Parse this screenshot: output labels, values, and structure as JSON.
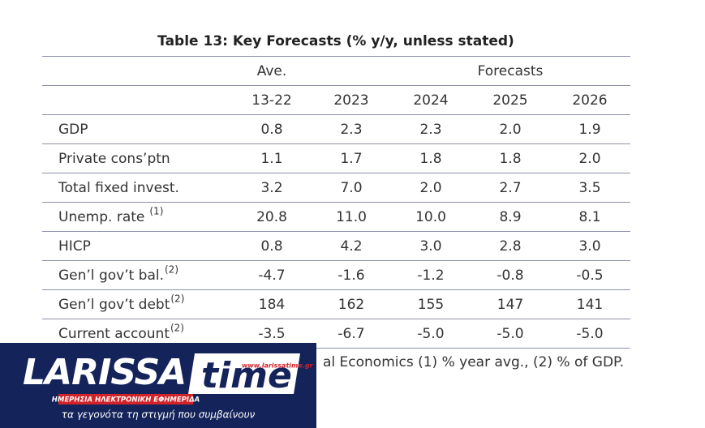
{
  "table": {
    "title": "Table 13: Key Forecasts (% y/y, unless stated)",
    "header_groups": [
      "Ave.",
      "Forecasts"
    ],
    "columns": [
      "13-22",
      "2023",
      "2024",
      "2025",
      "2026"
    ],
    "rows": [
      {
        "label": "GDP",
        "values": [
          "0.8",
          "2.3",
          "2.3",
          "2.0",
          "1.9"
        ]
      },
      {
        "label": "Private cons’ptn",
        "values": [
          "1.1",
          "1.7",
          "1.8",
          "1.8",
          "2.0"
        ]
      },
      {
        "label": "Total fixed invest.",
        "values": [
          "3.2",
          "7.0",
          "2.0",
          "2.7",
          "3.5"
        ]
      },
      {
        "label": "Unemp. rate",
        "note": "(1)",
        "values": [
          "20.8",
          "11.0",
          "10.0",
          "8.9",
          "8.1"
        ]
      },
      {
        "label": "HICP",
        "values": [
          "0.8",
          "4.2",
          "3.0",
          "2.8",
          "3.0"
        ]
      },
      {
        "label": "Gen’l gov’t bal.",
        "note": "(2)",
        "values": [
          "-4.7",
          "-1.6",
          "-1.2",
          "-0.8",
          "-0.5"
        ]
      },
      {
        "label": "Gen’l gov’t debt",
        "note": "(2)",
        "values": [
          "184",
          "162",
          "155",
          "147",
          "141"
        ]
      },
      {
        "label": "Current account",
        "note": "(2)",
        "values": [
          "-3.5",
          "-6.7",
          "-5.0",
          "-5.0",
          "-5.0"
        ]
      }
    ],
    "footer": "al Economics (1) % year avg., (2) % of GDP."
  },
  "logo": {
    "name": "LARISSA",
    "name2": "time",
    "url": "www.larissatime.gr",
    "tagline": "ΗΜΕΡΗΣΙΑ ΗΛΕΚΤΡΟΝΙΚΗ ΕΦΗΜΕΡΙΔΑ",
    "slogan": "τα γεγονότα τη στιγμή που συμβαίνουν"
  }
}
